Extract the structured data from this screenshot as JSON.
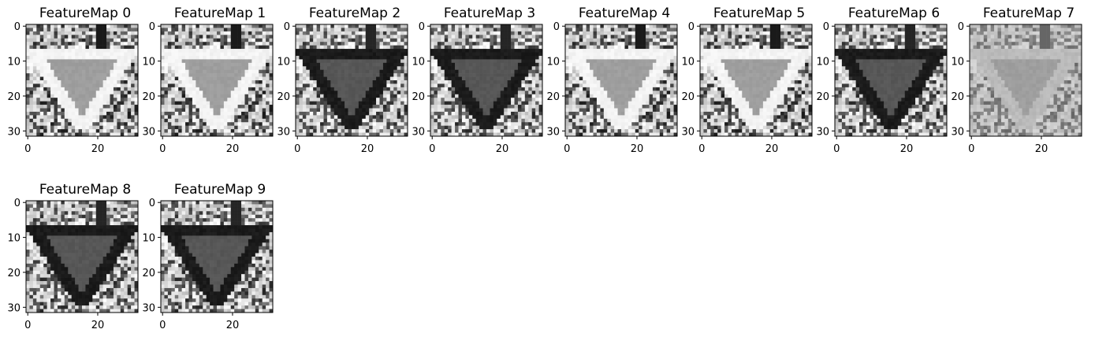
{
  "chart_data": {
    "type": "heatmap",
    "colormap": "gray",
    "grid": false,
    "xlim": [
      0,
      31
    ],
    "ylim": [
      31,
      0
    ],
    "xticks": [
      "0",
      "20"
    ],
    "yticks": [
      "0",
      "10",
      "20",
      "30"
    ],
    "panels": [
      {
        "title": "FeatureMap 0",
        "style": "light"
      },
      {
        "title": "FeatureMap 1",
        "style": "light"
      },
      {
        "title": "FeatureMap 2",
        "style": "dark"
      },
      {
        "title": "FeatureMap 3",
        "style": "dark"
      },
      {
        "title": "FeatureMap 4",
        "style": "light"
      },
      {
        "title": "FeatureMap 5",
        "style": "light"
      },
      {
        "title": "FeatureMap 6",
        "style": "dark"
      },
      {
        "title": "FeatureMap 7",
        "style": "mid"
      },
      {
        "title": "FeatureMap 8",
        "style": "dark"
      },
      {
        "title": "FeatureMap 9",
        "style": "dark"
      }
    ]
  }
}
